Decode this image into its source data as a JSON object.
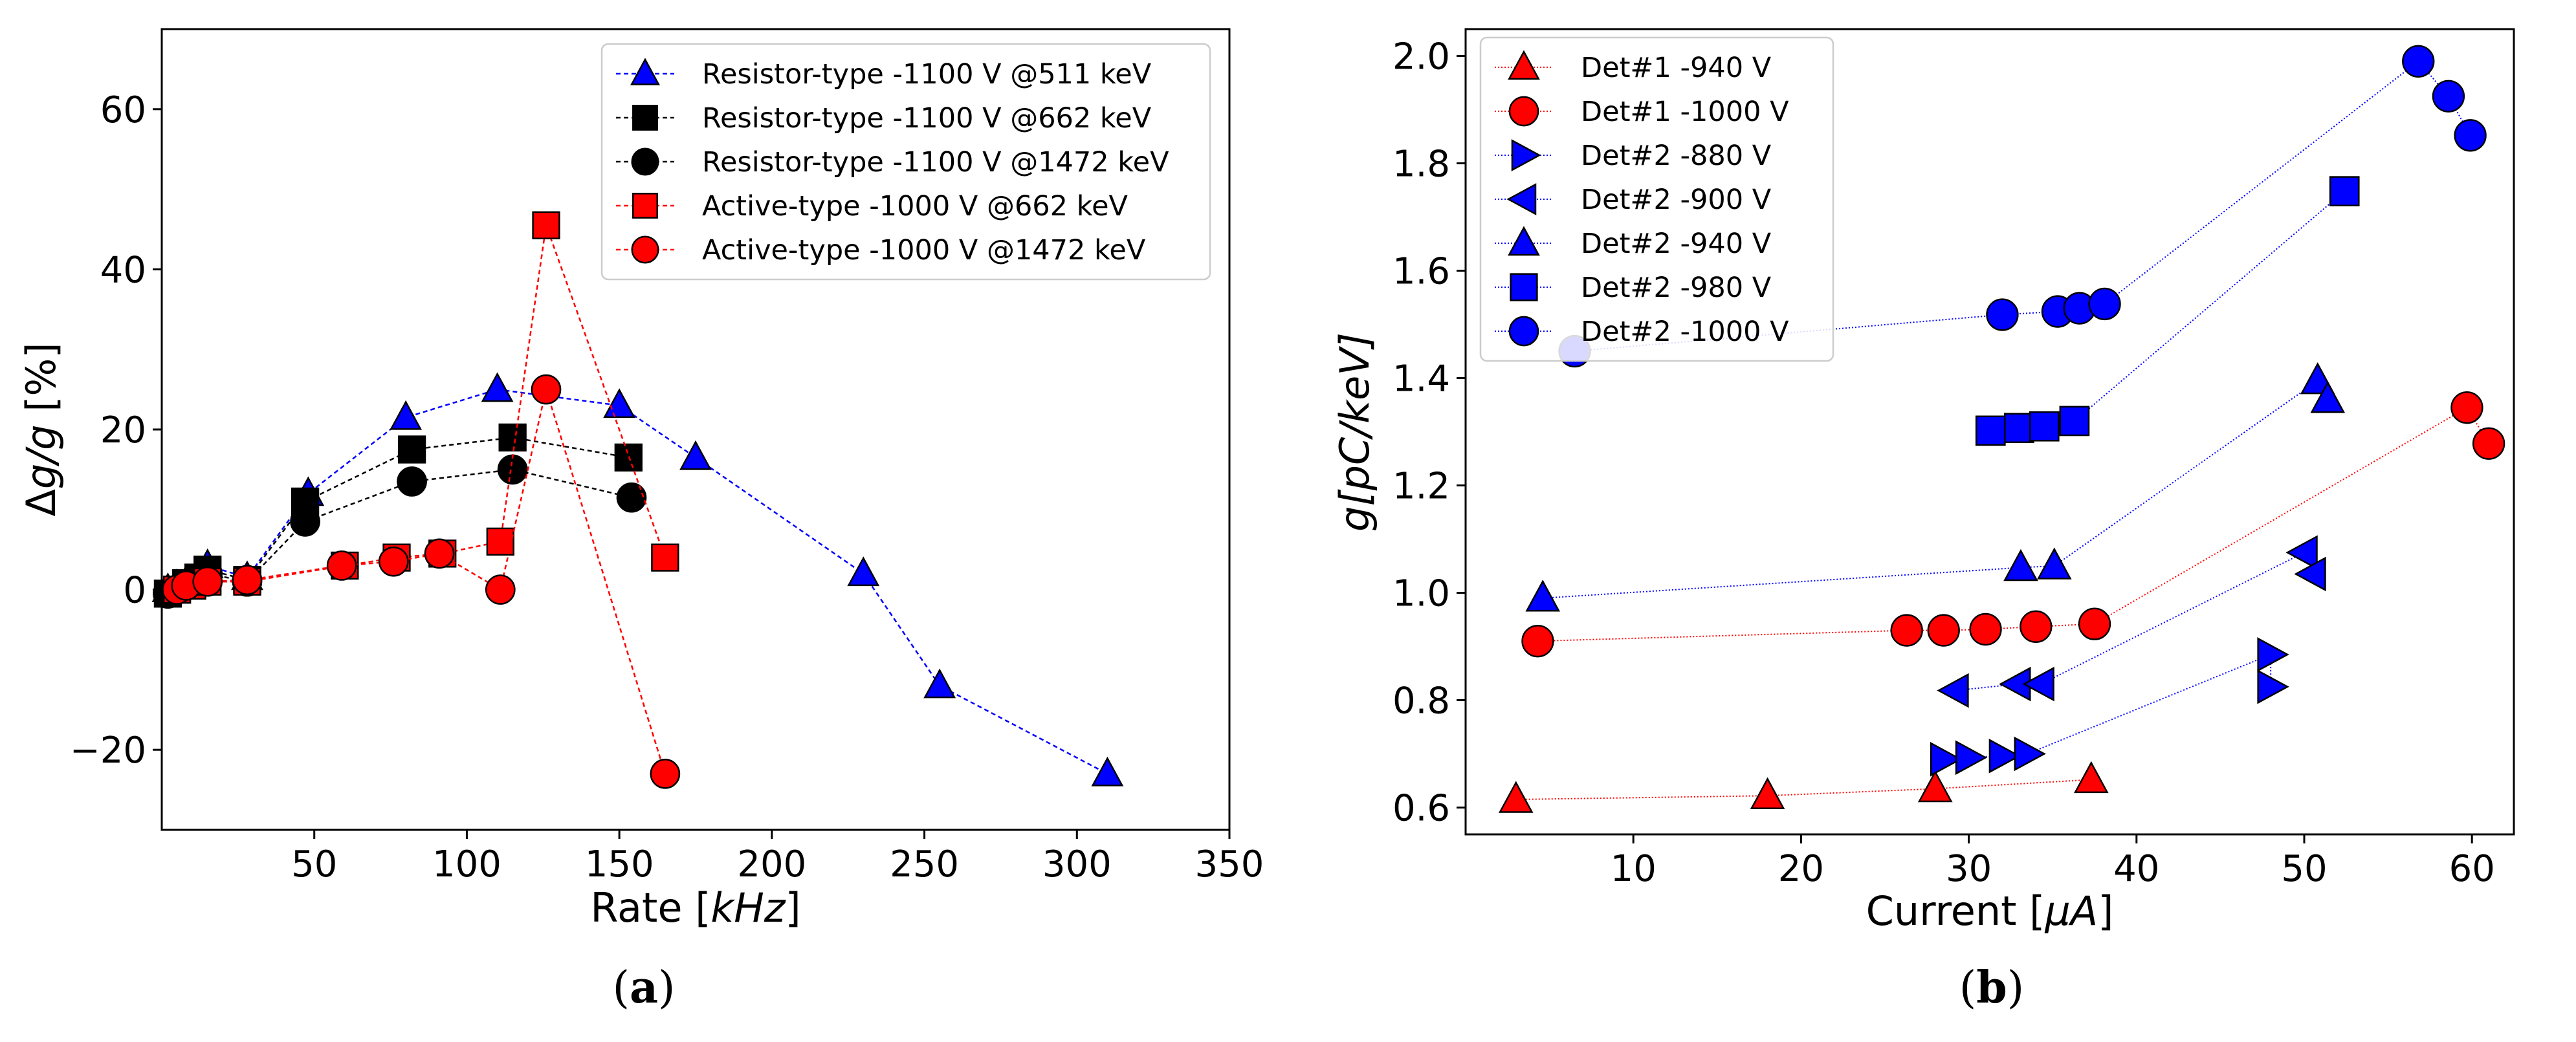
{
  "chart_data": [
    {
      "type": "scatter",
      "panel": "(a)",
      "panel_letter": "a",
      "xlabel_text": "Rate [",
      "xlabel_unit": "kHz",
      "xlabel_close": "]",
      "ylabel_text": "Δ",
      "ylabel_unit": "g/g",
      "ylabel_close": " [%]",
      "xlim": [
        0,
        350
      ],
      "ylim": [
        -30,
        70
      ],
      "xticks": [
        50,
        100,
        150,
        200,
        250,
        300,
        350
      ],
      "yticks": [
        -20,
        0,
        20,
        40,
        60
      ],
      "ytick_labels": [
        "−20",
        "0",
        "20",
        "40",
        "60"
      ],
      "grid": false,
      "legend_position": "top-right",
      "series": [
        {
          "name": "Resistor-type -1100 V @511 keV",
          "color": "#0000ff",
          "marker": "triangle",
          "x": [
            2,
            5,
            8,
            12,
            15,
            28,
            48,
            80,
            110,
            150,
            175,
            230,
            255,
            310
          ],
          "y": [
            0,
            0.5,
            1,
            2,
            3,
            1.5,
            12,
            21.5,
            25,
            23,
            16.5,
            2,
            -12,
            -23
          ]
        },
        {
          "name": "Resistor-type -1100 V @662 keV",
          "color": "#000000",
          "marker": "square",
          "x": [
            2,
            5,
            8,
            12,
            15,
            28,
            47,
            82,
            115,
            153
          ],
          "y": [
            -0.5,
            0,
            0.8,
            1.5,
            2.5,
            1.2,
            11,
            17.5,
            19,
            16.5
          ]
        },
        {
          "name": "Resistor-type -1100 V @1472 keV",
          "color": "#000000",
          "marker": "circle",
          "x": [
            2,
            5,
            8,
            12,
            15,
            28,
            47,
            82,
            115,
            154
          ],
          "y": [
            -0.5,
            0,
            0.5,
            1,
            2,
            1,
            8.5,
            13.5,
            15,
            11.5
          ]
        },
        {
          "name": "Active-type -1000 V @662 keV",
          "color": "#ff0000",
          "marker": "square",
          "x": [
            5,
            10,
            15,
            28,
            60,
            77,
            92,
            111,
            126,
            165
          ],
          "y": [
            0,
            0.5,
            1,
            1,
            3,
            4,
            4.5,
            6,
            45.5,
            4
          ]
        },
        {
          "name": "Active-type -1000 V @1472 keV",
          "color": "#ff0000",
          "marker": "circle",
          "x": [
            5,
            8,
            15,
            28,
            59,
            76,
            91,
            111,
            126,
            165
          ],
          "y": [
            0,
            0.5,
            1,
            1.2,
            3,
            3.5,
            4.5,
            0,
            25,
            -23
          ]
        }
      ]
    },
    {
      "type": "scatter",
      "panel": "(b)",
      "panel_letter": "b",
      "xlabel_text": "Current [",
      "xlabel_unit": "μA",
      "xlabel_close": "]",
      "ylabel_text": "g[pC/keV]",
      "xlim": [
        0,
        62.5
      ],
      "ylim": [
        0.55,
        2.05
      ],
      "xticks": [
        10,
        20,
        30,
        40,
        50,
        60
      ],
      "yticks": [
        0.6,
        0.8,
        1.0,
        1.2,
        1.4,
        1.6,
        1.8,
        2.0
      ],
      "ytick_labels": [
        "0.6",
        "0.8",
        "1.0",
        "1.2",
        "1.4",
        "1.6",
        "1.8",
        "2.0"
      ],
      "grid": false,
      "legend_position": "top-left",
      "series": [
        {
          "name": "Det#1 -940 V",
          "color": "#ff0000",
          "marker": "triangle",
          "x": [
            3,
            18,
            28,
            37.3
          ],
          "y": [
            0.615,
            0.622,
            0.635,
            0.652
          ]
        },
        {
          "name": "Det#1 -1000 V",
          "color": "#ff0000",
          "marker": "circle",
          "x": [
            4.3,
            26.3,
            28.5,
            31,
            34,
            37.5,
            59.7,
            61
          ],
          "y": [
            0.91,
            0.93,
            0.93,
            0.932,
            0.937,
            0.942,
            1.345,
            1.278
          ]
        },
        {
          "name": "Det#2 -880 V",
          "color": "#0000ff",
          "marker": "triangle-right",
          "x": [
            28.5,
            30,
            32,
            33.5,
            48,
            48
          ],
          "y": [
            0.69,
            0.693,
            0.696,
            0.7,
            0.885,
            0.825
          ]
        },
        {
          "name": "Det#2 -900 V",
          "color": "#0000ff",
          "marker": "triangle-left",
          "x": [
            29.2,
            32.9,
            34.3,
            50,
            50.5
          ],
          "y": [
            0.818,
            0.83,
            0.83,
            1.075,
            1.035
          ]
        },
        {
          "name": "Det#2 -940 V",
          "color": "#0000ff",
          "marker": "triangle",
          "x": [
            4.6,
            33.1,
            35.1,
            50.8,
            51.4
          ],
          "y": [
            0.99,
            1.047,
            1.05,
            1.395,
            1.36
          ]
        },
        {
          "name": "Det#2 -980 V",
          "color": "#0000ff",
          "marker": "square",
          "x": [
            31.3,
            33,
            34.5,
            36.3,
            52.4
          ],
          "y": [
            1.302,
            1.307,
            1.31,
            1.32,
            1.748
          ]
        },
        {
          "name": "Det#2 -1000 V",
          "color": "#0000ff",
          "marker": "circle",
          "x": [
            6.5,
            32,
            35.3,
            36.6,
            38.1,
            56.8,
            58.6,
            59.9
          ],
          "y": [
            1.45,
            1.518,
            1.524,
            1.53,
            1.538,
            1.99,
            1.925,
            1.852
          ]
        }
      ]
    }
  ]
}
